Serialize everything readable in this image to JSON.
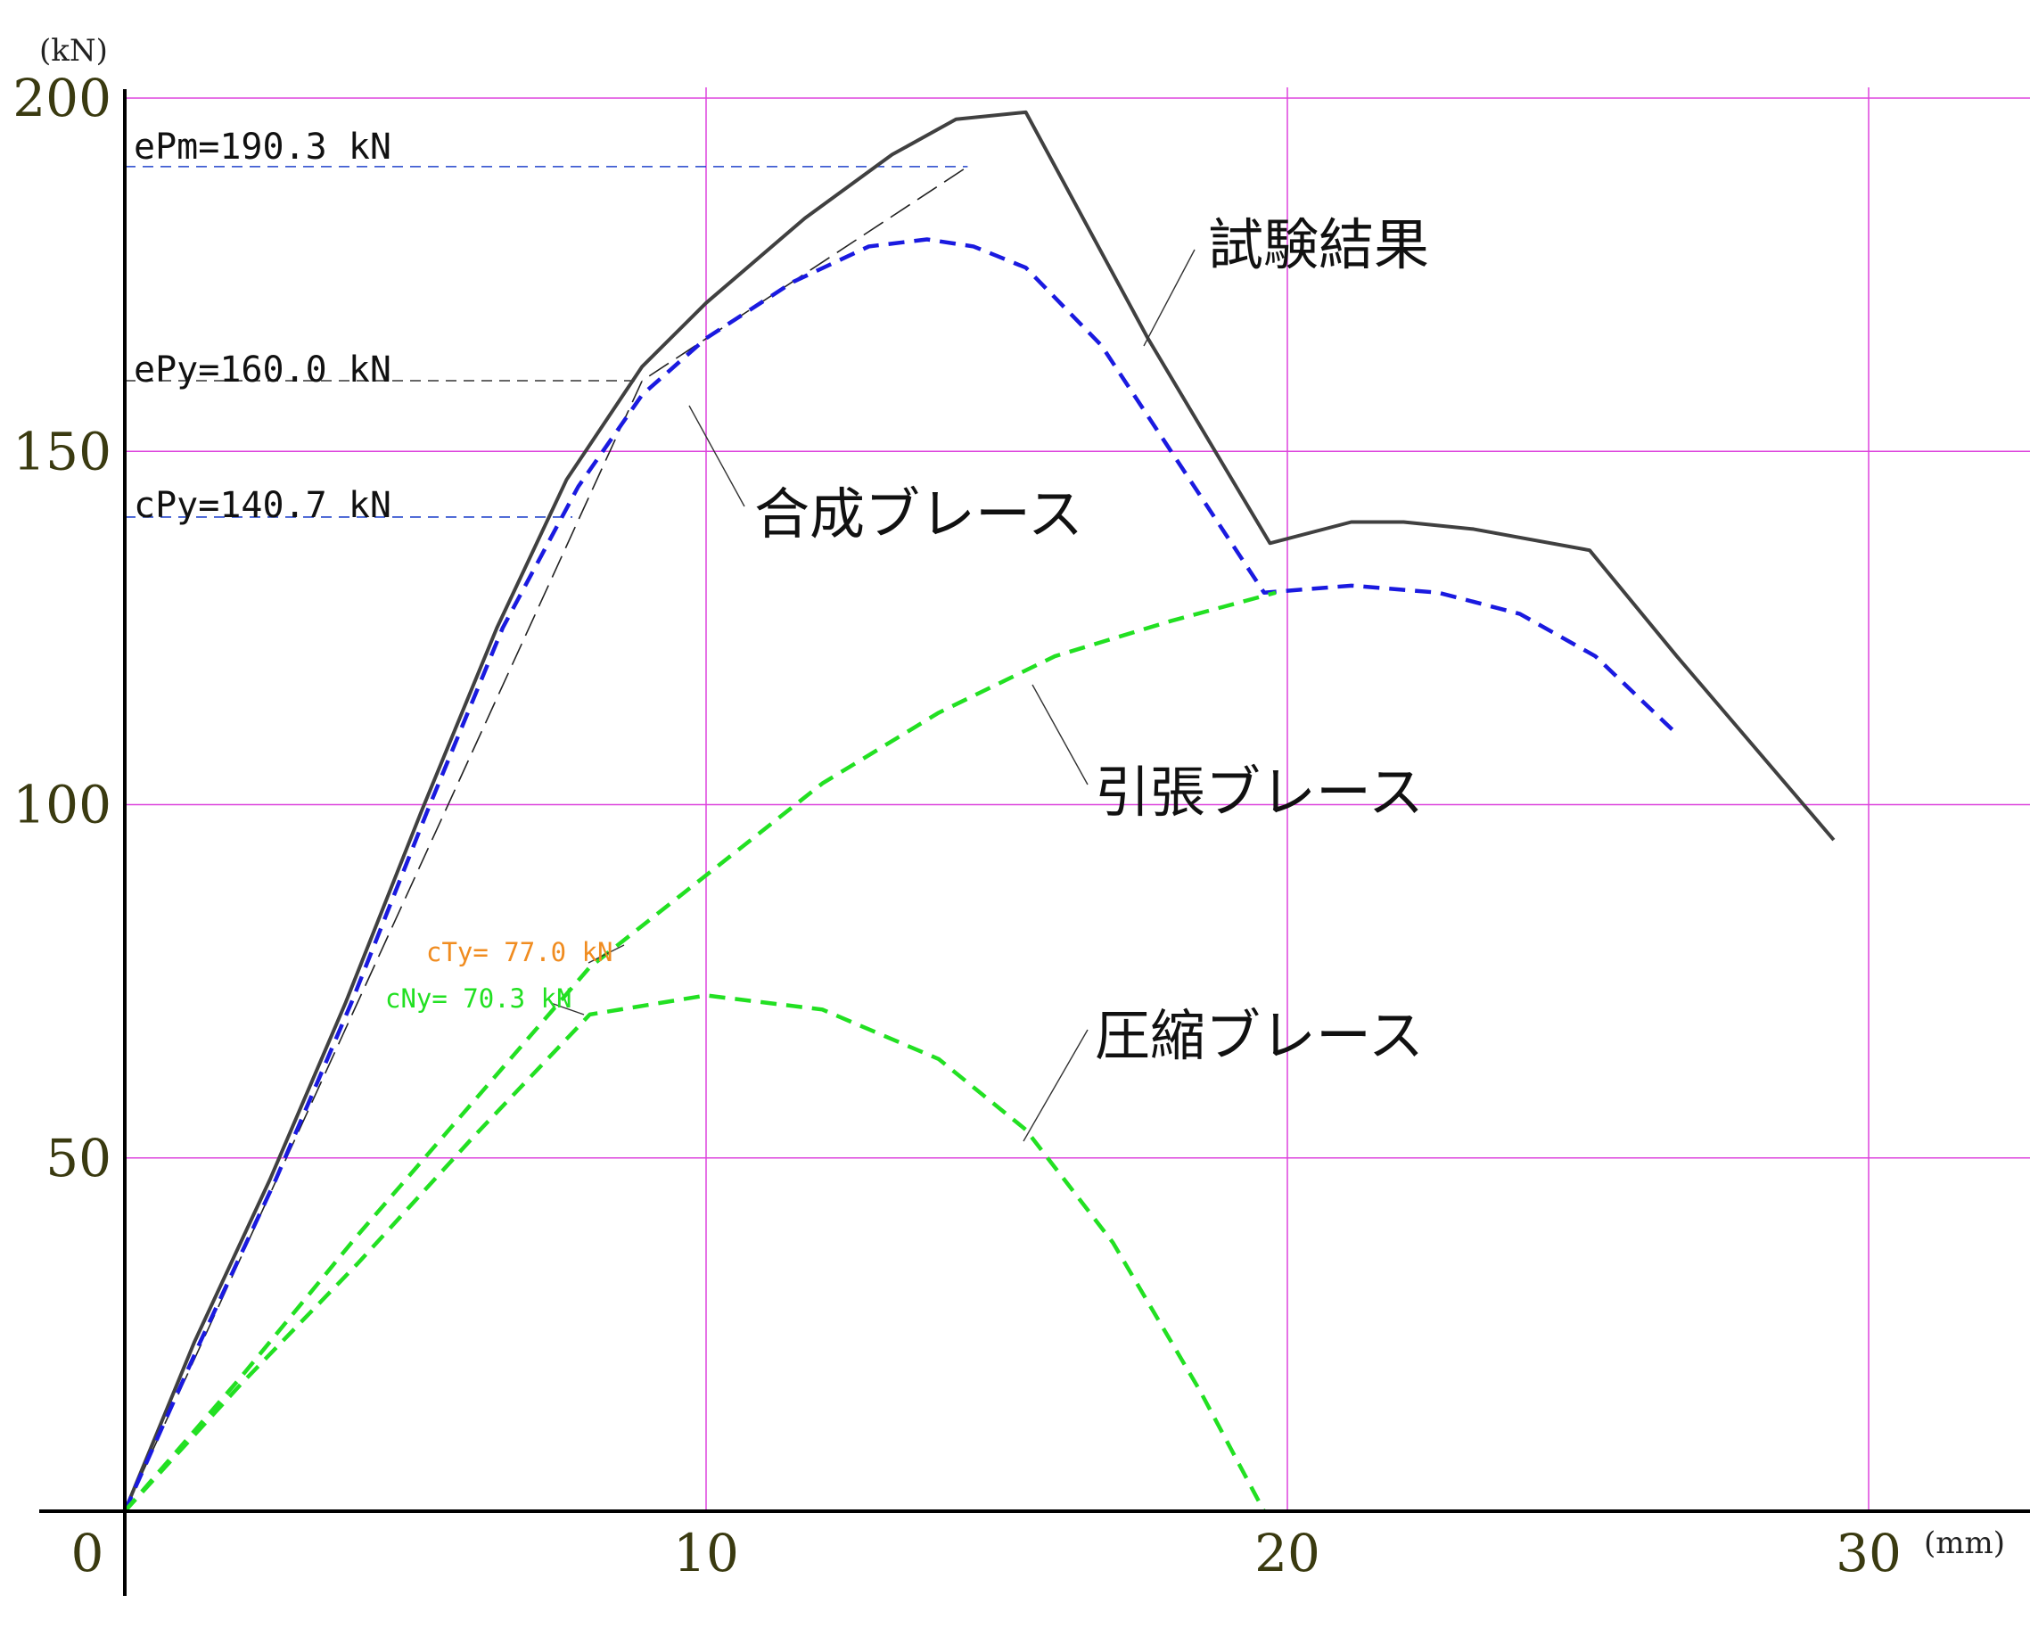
{
  "chart_data": {
    "type": "line",
    "title": "",
    "xlabel": "",
    "ylabel": "",
    "x_unit": "(mm)",
    "y_unit": "(kN)",
    "xlim": [
      0,
      33
    ],
    "ylim": [
      0,
      200
    ],
    "x_ticks": [
      0,
      10,
      20,
      30
    ],
    "y_ticks": [
      0,
      50,
      100,
      150,
      200
    ],
    "x_tick_labels": [
      "0",
      "10",
      "20",
      "30"
    ],
    "y_tick_labels": [
      "0",
      "50",
      "100",
      "150",
      "200"
    ],
    "grid": true,
    "grid_color": "#dd44dd",
    "series": [
      {
        "name": "試験結果",
        "style": "solid",
        "color": "#404040",
        "x": [
          0,
          1.2,
          2.5,
          3.8,
          5.1,
          6.4,
          7.6,
          8.9,
          10.0,
          11.7,
          13.2,
          14.3,
          15.5,
          17.6,
          19.7,
          21.1,
          22.0,
          23.2,
          25.2,
          26.7,
          29.4
        ],
        "y": [
          0,
          24,
          47,
          72,
          99,
          125,
          146,
          162,
          171,
          183,
          192,
          197,
          198,
          166,
          137,
          140,
          140,
          139,
          136,
          121,
          95
        ]
      },
      {
        "name": "合成ブレース",
        "style": "dashed",
        "color": "#1a1ae0",
        "x": [
          0,
          1.3,
          2.6,
          3.9,
          5.2,
          6.5,
          7.8,
          8.9,
          10.0,
          11.5,
          12.8,
          13.8,
          14.6,
          15.5,
          16.8,
          18.0,
          19.6,
          21.1,
          22.6,
          24.0,
          25.3,
          26.7
        ],
        "y": [
          0,
          24,
          47,
          72,
          99,
          125,
          145,
          158,
          166,
          174,
          179,
          180,
          179,
          176,
          165,
          150,
          130,
          131,
          130,
          127,
          121,
          110
        ]
      },
      {
        "name": "引張ブレース",
        "style": "dashed",
        "color": "#22e022",
        "x": [
          0,
          2.0,
          4.0,
          6.0,
          8.0,
          10.0,
          12.0,
          14.0,
          16.0,
          18.0,
          19.8
        ],
        "y": [
          0,
          19,
          39,
          58,
          77,
          90,
          103,
          113,
          121,
          126,
          130
        ]
      },
      {
        "name": "圧縮ブレース",
        "style": "dashed",
        "color": "#22e022",
        "x": [
          0,
          2.0,
          4.0,
          6.0,
          8.0,
          10.0,
          12.0,
          14.0,
          15.5,
          17.0,
          18.5,
          19.6
        ],
        "y": [
          0,
          18,
          35,
          53,
          70.3,
          73,
          71,
          64,
          54,
          38,
          17,
          0
        ]
      }
    ],
    "auxiliary_lines": {
      "bilinear": {
        "x": [
          0,
          8.9,
          14.5
        ],
        "y": [
          0,
          160,
          190.3
        ]
      },
      "ePm": {
        "x0": 0,
        "x1": 14.5,
        "y": 190.3
      },
      "ePy": {
        "x0": 0,
        "x1": 8.9,
        "y": 160.0
      },
      "cPy": {
        "x0": 0,
        "x1": 7.7,
        "y": 140.7
      }
    },
    "annotations": {
      "ePm": "ePm=190.3 kN",
      "ePy": "ePy=160.0 kN",
      "cPy": "cPy=140.7 kN",
      "cTy": "cTy= 77.0 kN",
      "cNy": "cNy= 70.3 kN"
    },
    "annotation_colors": {
      "cTy": "#f08c20",
      "cNy": "#22e022"
    }
  }
}
